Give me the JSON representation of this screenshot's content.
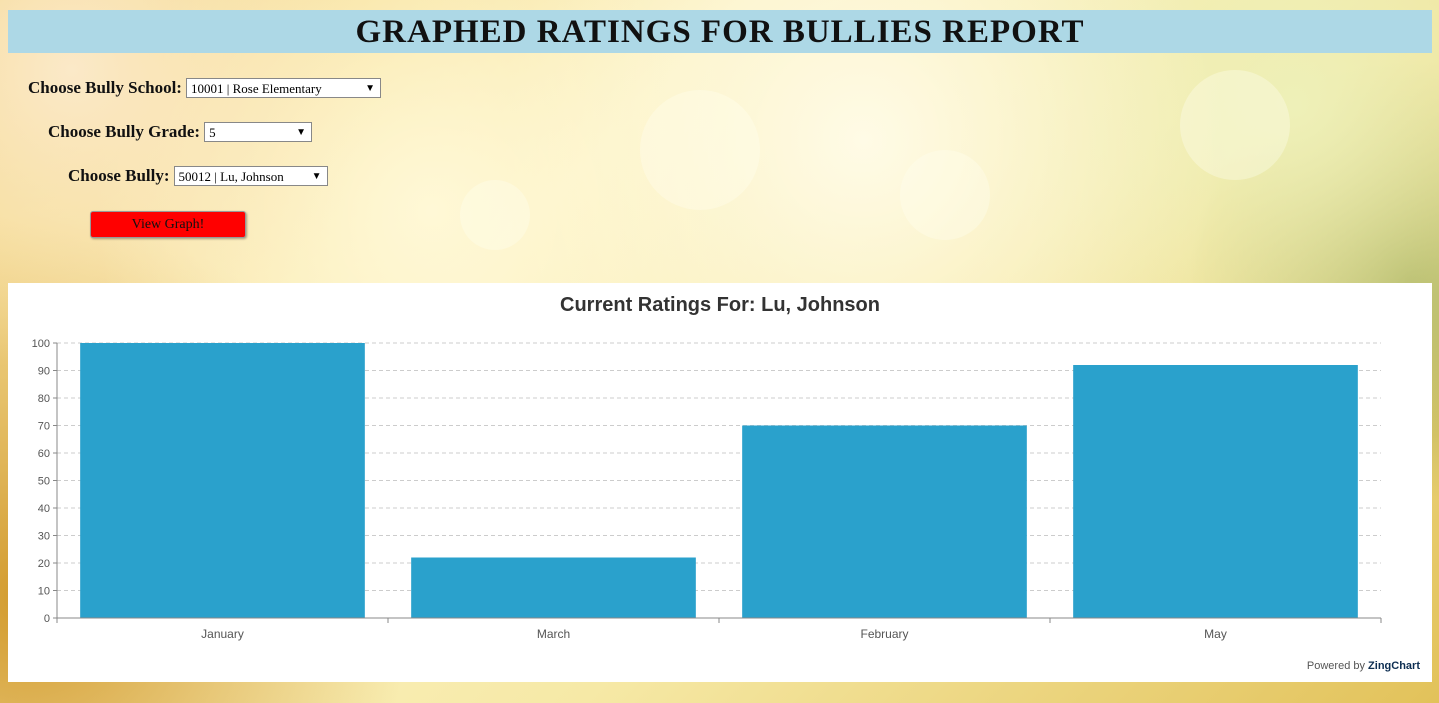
{
  "header": {
    "title": "GRAPHED RATINGS FOR BULLIES REPORT"
  },
  "form": {
    "school_label": "Choose Bully School:",
    "school_value": "10001 | Rose Elementary",
    "grade_label": "Choose Bully Grade:",
    "grade_value": "5",
    "bully_label": "Choose Bully:",
    "bully_value": "50012 | Lu, Johnson",
    "view_button": "View Graph!"
  },
  "chart_data": {
    "type": "bar",
    "title": "Current Ratings For: Lu, Johnson",
    "categories": [
      "January",
      "March",
      "February",
      "May"
    ],
    "values": [
      100,
      22,
      70,
      92
    ],
    "ylim": [
      0,
      100
    ],
    "yticks": [
      0,
      10,
      20,
      30,
      40,
      50,
      60,
      70,
      80,
      90,
      100
    ],
    "grid": true,
    "bar_color": "#2aa1cc"
  },
  "footer": {
    "powered_by": "Powered by",
    "brand": "ZingChart"
  }
}
